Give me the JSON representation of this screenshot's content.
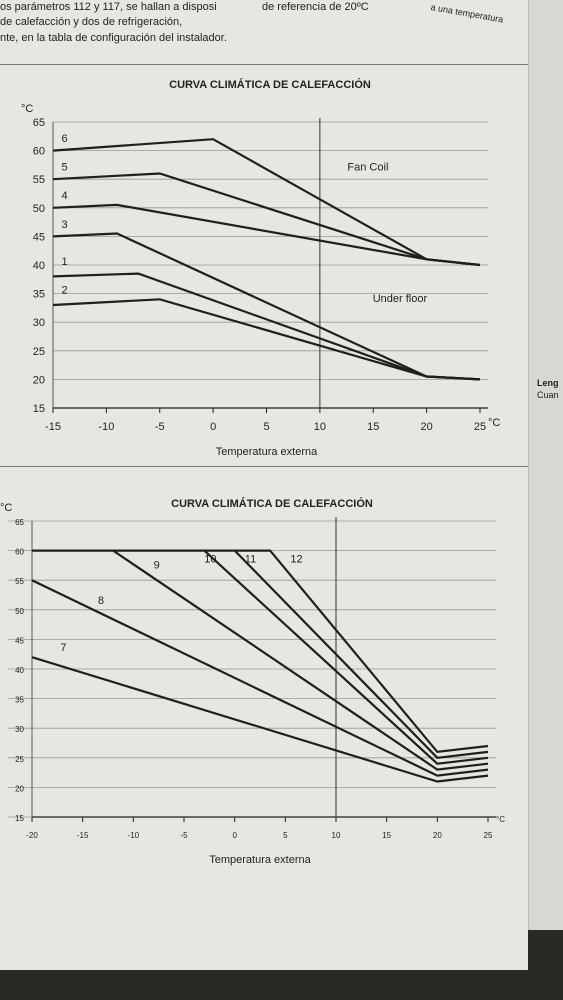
{
  "header": {
    "left_lines": [
      "os parámetros 112 y 117, se hallan a disposi",
      "de calefacción y dos de refrigeración,",
      "nte, en la tabla de configuración del instalador."
    ],
    "middle": "de referencia de 20ºC",
    "right": "a una temperatura"
  },
  "side": {
    "line1": "Leng",
    "line2": "Cuan"
  },
  "chart_data": [
    {
      "type": "line",
      "title": "CURVA CLIMÁTICA DE CALEFACCIÓN",
      "xlabel": "Temperatura externa",
      "ylabel": "°C",
      "x_unit": "°C",
      "xlim": [
        -15,
        25
      ],
      "ylim": [
        15,
        65
      ],
      "xticks": [
        -15,
        -10,
        -5,
        0,
        5,
        10,
        15,
        20,
        25
      ],
      "yticks": [
        15,
        20,
        25,
        30,
        35,
        40,
        45,
        50,
        55,
        60,
        65
      ],
      "vline_x": 10,
      "annotations": [
        {
          "text": "Fan Coil",
          "x": 14.5,
          "y": 56.5
        },
        {
          "text": "Under floor",
          "x": 17.5,
          "y": 33.5
        }
      ],
      "series": [
        {
          "name": "6",
          "points": [
            [
              -15,
              60
            ],
            [
              0,
              62
            ],
            [
              20,
              41
            ],
            [
              25,
              40
            ]
          ]
        },
        {
          "name": "5",
          "points": [
            [
              -15,
              55
            ],
            [
              -5,
              56
            ],
            [
              20,
              41
            ],
            [
              25,
              40
            ]
          ]
        },
        {
          "name": "4",
          "points": [
            [
              -15,
              50
            ],
            [
              -9,
              50.5
            ],
            [
              20,
              41
            ],
            [
              25,
              40
            ]
          ]
        },
        {
          "name": "3",
          "points": [
            [
              -15,
              45
            ],
            [
              -9,
              45.5
            ],
            [
              20,
              20.5
            ],
            [
              25,
              20
            ]
          ]
        },
        {
          "name": "1",
          "points": [
            [
              -15,
              38
            ],
            [
              -7,
              38.5
            ],
            [
              20,
              20.5
            ],
            [
              25,
              20
            ]
          ]
        },
        {
          "name": "2",
          "points": [
            [
              -15,
              33
            ],
            [
              -5,
              34
            ],
            [
              20,
              20.5
            ],
            [
              25,
              20
            ]
          ]
        }
      ]
    },
    {
      "type": "line",
      "title": "CURVA CLIMÁTICA DE CALEFACCIÓN",
      "xlabel": "Temperatura externa",
      "ylabel": "°C",
      "x_unit": "°C",
      "xlim": [
        -20,
        25
      ],
      "ylim": [
        15,
        65
      ],
      "xticks": [
        -20,
        -15,
        -10,
        -5,
        0,
        5,
        10,
        15,
        20,
        25
      ],
      "yticks": [
        15,
        20,
        25,
        30,
        35,
        40,
        45,
        50,
        55,
        60,
        65
      ],
      "vline_x": 10,
      "series": [
        {
          "name": "7",
          "points": [
            [
              -20,
              42
            ],
            [
              20,
              21
            ],
            [
              25,
              22
            ]
          ]
        },
        {
          "name": "8",
          "points": [
            [
              -20,
              55
            ],
            [
              20,
              22
            ],
            [
              25,
              23
            ]
          ]
        },
        {
          "name": "9",
          "points": [
            [
              -20,
              60
            ],
            [
              -12,
              60
            ],
            [
              20,
              23
            ],
            [
              25,
              24
            ]
          ]
        },
        {
          "name": "10",
          "points": [
            [
              -12,
              60
            ],
            [
              -3,
              60
            ],
            [
              20,
              24
            ],
            [
              25,
              25
            ]
          ]
        },
        {
          "name": "11",
          "points": [
            [
              -3,
              60
            ],
            [
              0,
              60
            ],
            [
              20,
              25
            ],
            [
              25,
              26
            ]
          ]
        },
        {
          "name": "12",
          "points": [
            [
              0,
              60
            ],
            [
              3.5,
              60
            ],
            [
              20,
              26
            ],
            [
              25,
              27
            ]
          ]
        }
      ]
    }
  ]
}
